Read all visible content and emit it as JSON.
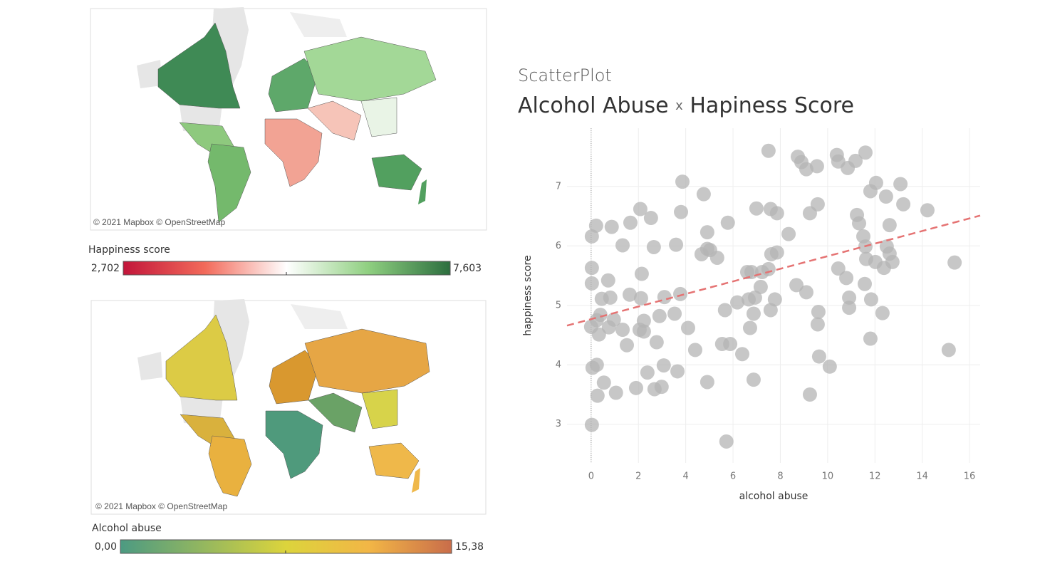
{
  "maps": [
    {
      "attribution": "© 2021 Mapbox © OpenStreetMap",
      "legend_title": "Happiness score",
      "legend_min": {
        "value": 2.702,
        "label": "2,702"
      },
      "legend_max": {
        "value": 7.603,
        "label": "7,603"
      }
    },
    {
      "attribution": "© 2021 Mapbox © OpenStreetMap",
      "legend_title": "Alcohol abuse",
      "legend_min": {
        "value": 0,
        "label": "0,00"
      },
      "legend_max": {
        "value": 15.38,
        "label": "15,38"
      }
    }
  ],
  "chart_data": {
    "type": "scatter",
    "supertitle": "ScatterPlot",
    "title": [
      "Alcohol Abuse",
      "x",
      "Hapiness Score"
    ],
    "x_label": "alcohol abuse",
    "y_label": "happiness score",
    "color": "#b4b4b4",
    "x": [
      0.03,
      0.21,
      0.87,
      1.66,
      2.08,
      2.53,
      1.33,
      2.65,
      3.59,
      3.86,
      3.8,
      4.76,
      4.91,
      4.91,
      4.67,
      5.03,
      5.33,
      5.78,
      6.99,
      7.59,
      7.86,
      8.35,
      7.62,
      7.86,
      8.74,
      8.89,
      9.1,
      9.55,
      9.25,
      9.58,
      7.5,
      10.39,
      10.45,
      10.85,
      11.18,
      11.6,
      11.24,
      11.33,
      12.05,
      11.81,
      12.47,
      13.08,
      13.2,
      12.62,
      14.22,
      11.51,
      11.6,
      12.5,
      12.62,
      12.74,
      11.63,
      12.02,
      12.38,
      10.45,
      10.79,
      11.57,
      11.84,
      12.32,
      10.91,
      10.91,
      11.81,
      15.37,
      15.12,
      10.09,
      9.64,
      9.61,
      9.58,
      9.25,
      9.1,
      8.68,
      7.5,
      7.23,
      7.77,
      7.59,
      6.87,
      6.93,
      7.17,
      6.66,
      6.72,
      6.18,
      6.6,
      6.78,
      6.39,
      5.88,
      5.54,
      5.66,
      5.72,
      6.87,
      4.91,
      4.4,
      4.1,
      3.53,
      3.77,
      3.1,
      2.77,
      3.07,
      3.65,
      2.38,
      2.98,
      2.68,
      1.9,
      1.05,
      0.27,
      0.54,
      0.06,
      0.24,
      0.03,
      0.03,
      0.03,
      0.39,
      0.24,
      0.45,
      0.81,
      0.72,
      0.75,
      0.96,
      1.33,
      2.05,
      2.23,
      2.23,
      2.11,
      1.63,
      2.14,
      1.51,
      2.89,
      0,
      0.33
    ],
    "values": [
      6.16,
      6.34,
      6.32,
      6.39,
      6.62,
      6.47,
      6.01,
      5.98,
      6.02,
      7.08,
      6.57,
      6.87,
      6.23,
      5.95,
      5.86,
      5.93,
      5.8,
      6.39,
      6.63,
      6.62,
      6.55,
      6.2,
      5.86,
      5.89,
      7.5,
      7.41,
      7.29,
      7.34,
      6.55,
      6.7,
      7.6,
      7.53,
      7.42,
      7.31,
      7.43,
      7.57,
      6.52,
      6.38,
      7.06,
      6.92,
      6.83,
      7.04,
      6.7,
      6.35,
      6.6,
      6.16,
      5.99,
      5.99,
      5.87,
      5.73,
      5.78,
      5.73,
      5.63,
      5.62,
      5.46,
      5.36,
      5.1,
      4.87,
      5.13,
      4.96,
      4.44,
      5.72,
      4.25,
      3.97,
      4.14,
      4.89,
      4.68,
      3.5,
      5.22,
      5.34,
      5.61,
      5.56,
      5.1,
      4.92,
      4.86,
      5.13,
      5.31,
      5.1,
      4.62,
      5.05,
      5.56,
      5.56,
      4.18,
      4.35,
      4.35,
      4.92,
      2.71,
      3.75,
      3.71,
      4.25,
      4.62,
      4.86,
      5.19,
      5.14,
      4.38,
      3.99,
      3.89,
      3.87,
      3.63,
      3.59,
      3.61,
      3.53,
      3.48,
      3.7,
      3.95,
      4,
      2.99,
      5.63,
      5.37,
      4.84,
      4.75,
      5.11,
      5.13,
      5.42,
      4.63,
      4.76,
      4.59,
      4.59,
      4.56,
      4.74,
      5.12,
      5.18,
      5.53,
      4.33,
      4.82,
      4.64,
      4.51
    ],
    "trendline": {
      "x": [
        -1.02,
        16.45
      ],
      "values": [
        4.66,
        6.51
      ],
      "color": "#e57373"
    },
    "xlim": [
      -1.02,
      16.45
    ],
    "ylim": [
      2.35,
      7.98
    ],
    "xticks": [
      0,
      2,
      4,
      6,
      8,
      10,
      12,
      14,
      16
    ],
    "yticks": [
      3,
      4,
      5,
      6,
      7
    ],
    "grid": true,
    "zero_line": true
  }
}
